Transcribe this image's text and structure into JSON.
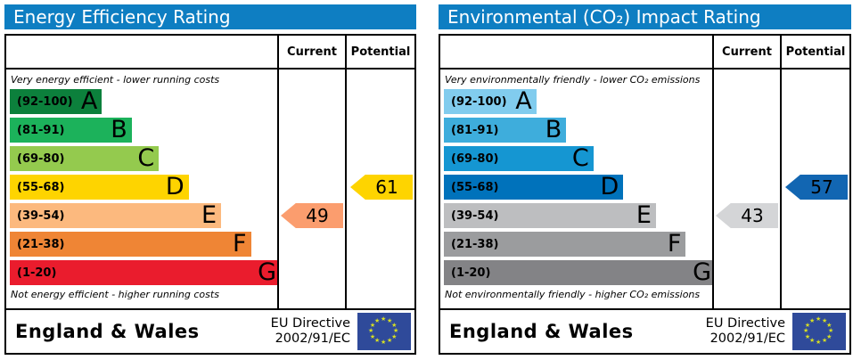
{
  "eu_flag": {
    "background": "#2f4a9a",
    "star_color": "#d6de23"
  },
  "left_panel": {
    "title": "Energy Efficiency Rating",
    "columns": {
      "current": "Current",
      "potential": "Potential"
    },
    "top_caption": "Very energy efficient - lower running costs",
    "bottom_caption": "Not energy efficient - higher running costs",
    "bands": [
      {
        "range": "(92-100)",
        "letter": "A",
        "color": "#0c803c",
        "width_pct": 34
      },
      {
        "range": "(81-91)",
        "letter": "B",
        "color": "#1cb25b",
        "width_pct": 45
      },
      {
        "range": "(69-80)",
        "letter": "C",
        "color": "#94ca4e",
        "width_pct": 55
      },
      {
        "range": "(55-68)",
        "letter": "D",
        "color": "#fed400",
        "width_pct": 66
      },
      {
        "range": "(39-54)",
        "letter": "E",
        "color": "#fcb97e",
        "width_pct": 78
      },
      {
        "range": "(21-38)",
        "letter": "F",
        "color": "#ef8535",
        "width_pct": 89
      },
      {
        "range": "(1-20)",
        "letter": "G",
        "color": "#ea1c2d",
        "width_pct": 100
      }
    ],
    "current": {
      "value": "49",
      "band_index": 4,
      "color": "#fb9d6e"
    },
    "potential": {
      "value": "61",
      "band_index": 3,
      "color": "#fed400"
    },
    "footer": {
      "region": "England & Wales",
      "directive": [
        "EU Directive",
        "2002/91/EC"
      ]
    }
  },
  "right_panel": {
    "title": "Environmental (CO₂) Impact Rating",
    "columns": {
      "current": "Current",
      "potential": "Potential"
    },
    "top_caption": "Very environmentally friendly - lower CO₂ emissions",
    "bottom_caption": "Not environmentally friendly - higher CO₂ emissions",
    "bands": [
      {
        "range": "(92-100)",
        "letter": "A",
        "color": "#81ccee",
        "width_pct": 34
      },
      {
        "range": "(81-91)",
        "letter": "B",
        "color": "#3eaddc",
        "width_pct": 45
      },
      {
        "range": "(69-80)",
        "letter": "C",
        "color": "#1596d2",
        "width_pct": 55
      },
      {
        "range": "(55-68)",
        "letter": "D",
        "color": "#0072bb",
        "width_pct": 66
      },
      {
        "range": "(39-54)",
        "letter": "E",
        "color": "#bdbec0",
        "width_pct": 78
      },
      {
        "range": "(21-38)",
        "letter": "F",
        "color": "#9b9c9e",
        "width_pct": 89
      },
      {
        "range": "(1-20)",
        "letter": "G",
        "color": "#838386",
        "width_pct": 100
      }
    ],
    "current": {
      "value": "43",
      "band_index": 4,
      "color": "#d4d5d7"
    },
    "potential": {
      "value": "57",
      "band_index": 3,
      "color": "#1266b2"
    },
    "footer": {
      "region": "England & Wales",
      "directive": [
        "EU Directive",
        "2002/91/EC"
      ]
    }
  },
  "chart_data": [
    {
      "type": "bar",
      "title": "Energy Efficiency Rating",
      "top_caption": "Very energy efficient - lower running costs",
      "bottom_caption": "Not energy efficient - higher running costs",
      "scale_bands": [
        {
          "letter": "A",
          "range": [
            92,
            100
          ]
        },
        {
          "letter": "B",
          "range": [
            81,
            91
          ]
        },
        {
          "letter": "C",
          "range": [
            69,
            80
          ]
        },
        {
          "letter": "D",
          "range": [
            55,
            68
          ]
        },
        {
          "letter": "E",
          "range": [
            39,
            54
          ]
        },
        {
          "letter": "F",
          "range": [
            21,
            38
          ]
        },
        {
          "letter": "G",
          "range": [
            1,
            20
          ]
        }
      ],
      "markers": {
        "current": 49,
        "potential": 61
      },
      "footer": "England & Wales — EU Directive 2002/91/EC"
    },
    {
      "type": "bar",
      "title": "Environmental (CO₂) Impact Rating",
      "top_caption": "Very environmentally friendly - lower CO₂ emissions",
      "bottom_caption": "Not environmentally friendly - higher CO₂ emissions",
      "scale_bands": [
        {
          "letter": "A",
          "range": [
            92,
            100
          ]
        },
        {
          "letter": "B",
          "range": [
            81,
            91
          ]
        },
        {
          "letter": "C",
          "range": [
            69,
            80
          ]
        },
        {
          "letter": "D",
          "range": [
            55,
            68
          ]
        },
        {
          "letter": "E",
          "range": [
            39,
            54
          ]
        },
        {
          "letter": "F",
          "range": [
            21,
            38
          ]
        },
        {
          "letter": "G",
          "range": [
            1,
            20
          ]
        }
      ],
      "markers": {
        "current": 43,
        "potential": 57
      },
      "footer": "England & Wales — EU Directive 2002/91/EC"
    }
  ]
}
